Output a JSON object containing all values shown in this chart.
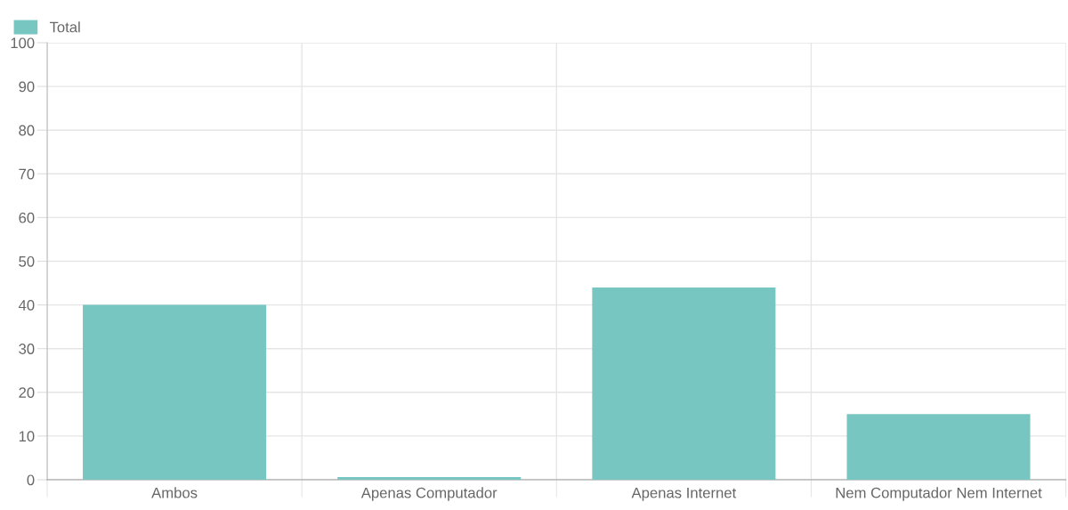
{
  "chart_data": {
    "type": "bar",
    "categories": [
      "Ambos",
      "Apenas Computador",
      "Apenas Internet",
      "Nem Computador Nem Internet"
    ],
    "series": [
      {
        "name": "Total",
        "color": "#77c6c2",
        "values": [
          40,
          0.6,
          44,
          15
        ]
      }
    ],
    "ylim": [
      0,
      100
    ],
    "yticks": [
      0,
      10,
      20,
      30,
      40,
      50,
      60,
      70,
      80,
      90,
      100
    ],
    "grid": true,
    "legend": "top left"
  }
}
